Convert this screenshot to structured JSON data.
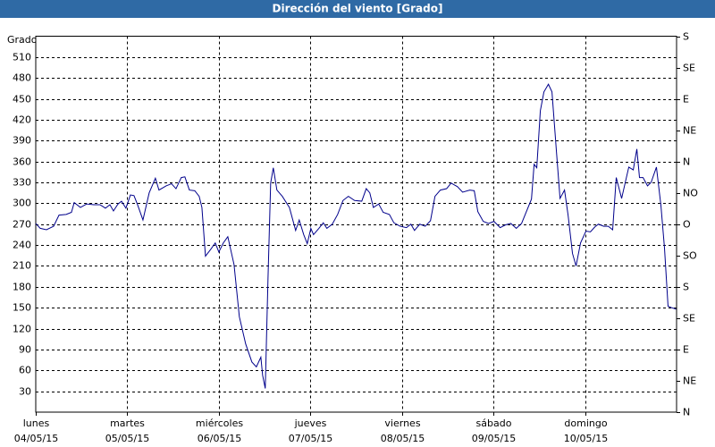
{
  "chart_data": {
    "type": "line",
    "title": "Dirección del viento [Grado]",
    "y_label": "Grado",
    "xlim": [
      0,
      7
    ],
    "xticks": [
      {
        "value": 0,
        "label": "lunes",
        "date": "04/05/15"
      },
      {
        "value": 1,
        "label": "martes",
        "date": "05/05/15"
      },
      {
        "value": 2,
        "label": "miércoles",
        "date": "06/05/15"
      },
      {
        "value": 3,
        "label": "jueves",
        "date": "07/05/15"
      },
      {
        "value": 4,
        "label": "viernes",
        "date": "08/05/15"
      },
      {
        "value": 5,
        "label": "sábado",
        "date": "09/05/15"
      },
      {
        "value": 6,
        "label": "domingo",
        "date": "10/05/15"
      }
    ],
    "ylim": [
      0,
      540
    ],
    "yticks": [
      30,
      60,
      90,
      120,
      150,
      180,
      210,
      240,
      270,
      300,
      330,
      360,
      390,
      420,
      450,
      480,
      510
    ],
    "y2lim": [
      0,
      540
    ],
    "y2ticks": [
      {
        "value": 0,
        "label": "N"
      },
      {
        "value": 45,
        "label": "NE"
      },
      {
        "value": 90,
        "label": "E"
      },
      {
        "value": 135,
        "label": "SE"
      },
      {
        "value": 180,
        "label": "S"
      },
      {
        "value": 225,
        "label": "SO"
      },
      {
        "value": 270,
        "label": "O"
      },
      {
        "value": 315,
        "label": "NO"
      },
      {
        "value": 360,
        "label": "N"
      },
      {
        "value": 405,
        "label": "NE"
      },
      {
        "value": 450,
        "label": "E"
      },
      {
        "value": 495,
        "label": "SE"
      },
      {
        "value": 540,
        "label": "S"
      }
    ],
    "grid": true,
    "series": [
      {
        "name": "Dirección del viento",
        "color": "#00008b",
        "x": [
          0,
          0.049,
          0.117,
          0.195,
          0.254,
          0.332,
          0.39,
          0.42,
          0.488,
          0.556,
          0.634,
          0.702,
          0.761,
          0.81,
          0.849,
          0.898,
          0.937,
          0.985,
          1.034,
          1.073,
          1.112,
          1.171,
          1.239,
          1.307,
          1.346,
          1.424,
          1.483,
          1.532,
          1.59,
          1.629,
          1.678,
          1.737,
          1.785,
          1.815,
          1.854,
          1.912,
          1.961,
          2,
          2.049,
          2.098,
          2.166,
          2.224,
          2.293,
          2.361,
          2.41,
          2.459,
          2.478,
          2.507,
          2.537,
          2.566,
          2.595,
          2.634,
          2.693,
          2.771,
          2.839,
          2.878,
          2.927,
          2.966,
          3.005,
          3.034,
          3.093,
          3.141,
          3.18,
          3.239,
          3.298,
          3.356,
          3.415,
          3.483,
          3.561,
          3.61,
          3.649,
          3.688,
          3.746,
          3.795,
          3.863,
          3.912,
          3.98,
          4.049,
          4.098,
          4.137,
          4.195,
          4.254,
          4.312,
          4.361,
          4.42,
          4.488,
          4.537,
          4.605,
          4.663,
          4.741,
          4.79,
          4.829,
          4.888,
          4.946,
          5.005,
          5.073,
          5.132,
          5.19,
          5.249,
          5.307,
          5.356,
          5.415,
          5.444,
          5.473,
          5.512,
          5.551,
          5.6,
          5.639,
          5.688,
          5.727,
          5.776,
          5.815,
          5.863,
          5.902,
          5.951,
          6.01,
          6.059,
          6.107,
          6.146,
          6.205,
          6.254,
          6.302,
          6.341,
          6.4,
          6.478,
          6.527,
          6.566,
          6.595,
          6.634,
          6.683,
          6.722,
          6.78,
          6.829,
          6.868,
          6.907,
          6.946,
          6.995
        ],
        "values": [
          271,
          264,
          262,
          267,
          283,
          284,
          287,
          301,
          294,
          299,
          298,
          298,
          293,
          298,
          289,
          299,
          303,
          293,
          312,
          311,
          298,
          276,
          315,
          336,
          319,
          325,
          328,
          321,
          337,
          338,
          319,
          318,
          310,
          294,
          224,
          234,
          243,
          230,
          243,
          252,
          212,
          137,
          98,
          72,
          65,
          79,
          53,
          34,
          192,
          329,
          351,
          319,
          310,
          294,
          261,
          276,
          255,
          242,
          264,
          255,
          264,
          272,
          264,
          270,
          284,
          304,
          310,
          304,
          303,
          321,
          315,
          294,
          299,
          287,
          284,
          272,
          267,
          265,
          270,
          261,
          270,
          267,
          275,
          310,
          319,
          321,
          329,
          324,
          316,
          319,
          318,
          288,
          274,
          271,
          274,
          265,
          269,
          271,
          264,
          271,
          287,
          306,
          356,
          351,
          433,
          460,
          471,
          460,
          374,
          307,
          319,
          283,
          228,
          210,
          243,
          260,
          259,
          266,
          270,
          267,
          267,
          262,
          337,
          307,
          352,
          348,
          378,
          337,
          337,
          325,
          330,
          352,
          297,
          236,
          152,
          150,
          148
        ]
      }
    ]
  }
}
